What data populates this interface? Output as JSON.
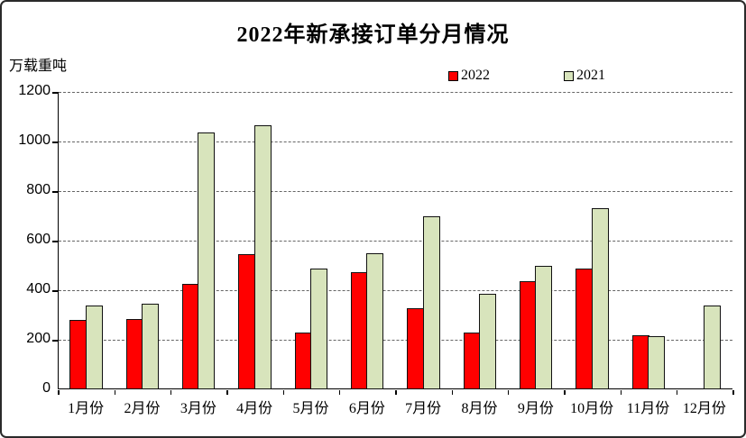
{
  "chart_data": {
    "type": "bar",
    "title": "2022年新承接订单分月情况",
    "unit_label": "万载重吨",
    "categories": [
      "1月份",
      "2月份",
      "3月份",
      "4月份",
      "5月份",
      "6月份",
      "7月份",
      "8月份",
      "9月份",
      "10月份",
      "11月份",
      "12月份"
    ],
    "series": [
      {
        "name": "2022",
        "color": "#FF0000",
        "values": [
          280,
          282,
          427,
          545,
          228,
          472,
          327,
          230,
          437,
          488,
          220,
          0
        ]
      },
      {
        "name": "2021",
        "color": "#D8E4BC",
        "values": [
          337,
          344,
          1036,
          1066,
          487,
          548,
          697,
          385,
          499,
          730,
          214,
          339
        ]
      }
    ],
    "ylim": [
      0,
      1200
    ],
    "yticks": [
      0,
      200,
      400,
      600,
      800,
      1000,
      1200
    ],
    "xlabel": "",
    "ylabel": "",
    "grid": "horizontal-dashed",
    "legend_position": "top-center",
    "bar_border_color": "#111111",
    "axis_color": "#000000"
  }
}
